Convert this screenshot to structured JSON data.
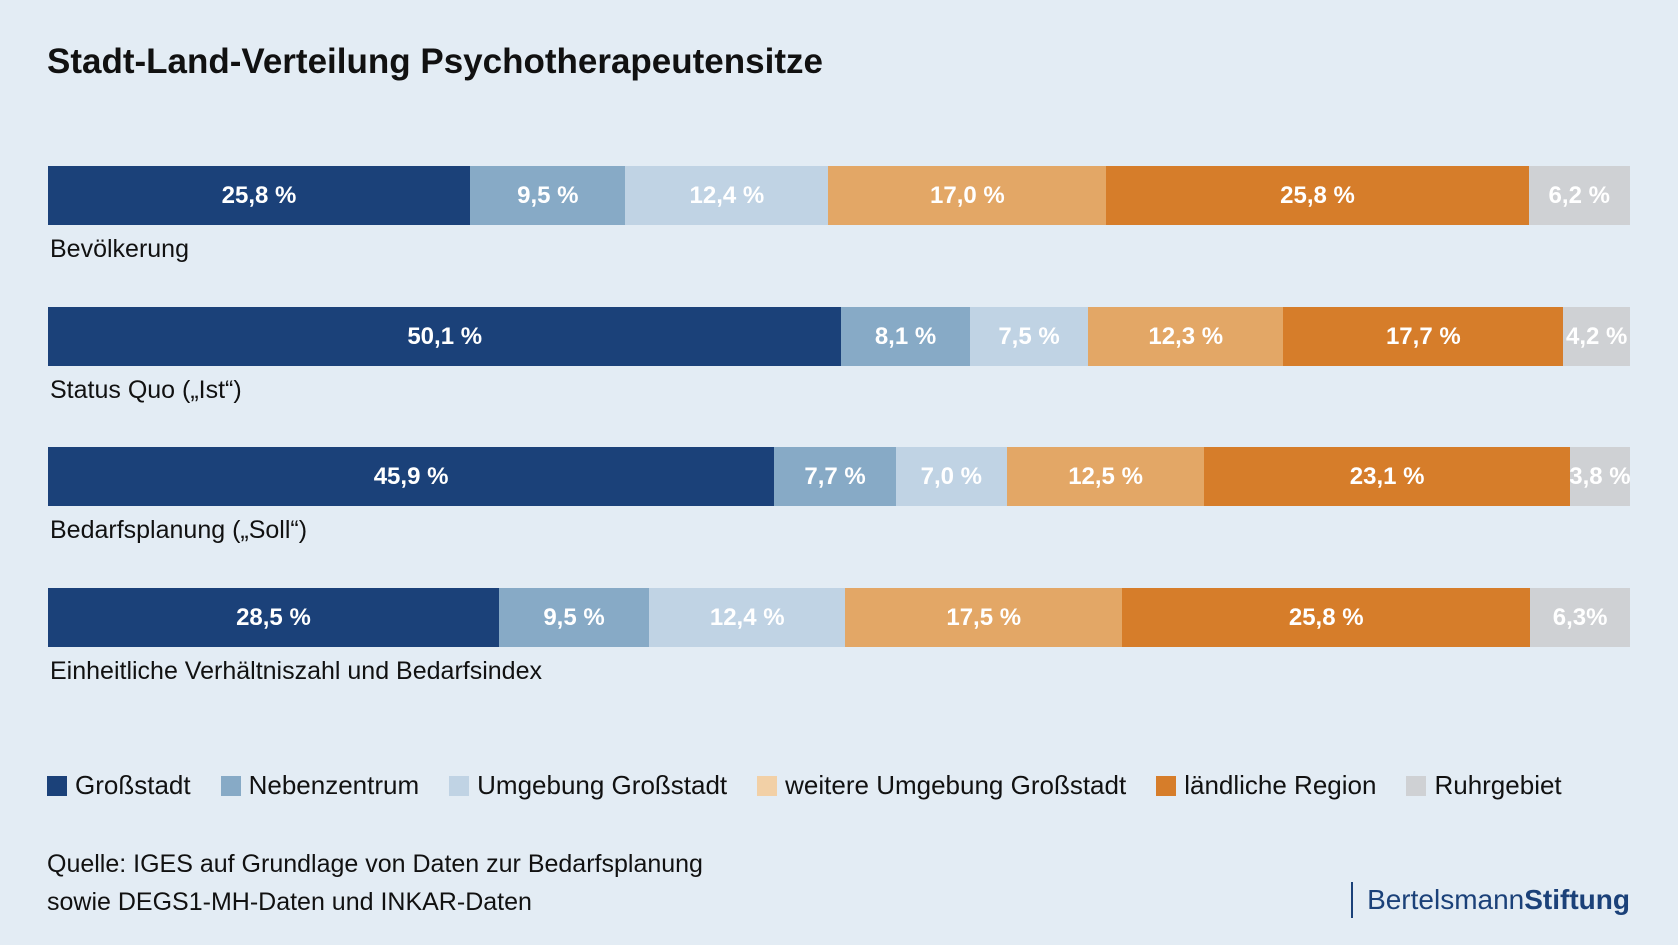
{
  "chart_data": {
    "type": "bar",
    "stacked": true,
    "orientation": "horizontal",
    "title": "Stadt-Land-Verteilung Psychotherapeutensitze",
    "categories": [
      "Bevölkerung",
      "Status Quo („Ist“)",
      "Bedarfsplanung („Soll“)",
      "Einheitliche Verhältniszahl und Bedarfsindex"
    ],
    "series": [
      {
        "name": "Großstadt",
        "color": "#1b4179",
        "values": [
          25.8,
          50.1,
          45.9,
          28.5
        ],
        "labels": [
          "25,8 %",
          "50,1 %",
          "45,9 %",
          "28,5 %"
        ]
      },
      {
        "name": "Nebenzentrum",
        "color": "#87aac6",
        "values": [
          9.5,
          8.1,
          7.7,
          9.5
        ],
        "labels": [
          "9,5 %",
          "8,1 %",
          "7,7 %",
          "9,5 %"
        ]
      },
      {
        "name": "Umgebung Großstadt",
        "color": "#c0d3e4",
        "values": [
          12.4,
          7.5,
          7.0,
          12.4
        ],
        "labels": [
          "12,4 %",
          "7,5 %",
          "7,0 %",
          "12,4 %"
        ]
      },
      {
        "name": "weitere Umgebung Großstadt",
        "color": "#e3a766",
        "legend_color": "#f2d0a6",
        "values": [
          17.0,
          12.3,
          12.5,
          17.5
        ],
        "labels": [
          "17,0 %",
          "12,3 %",
          "12,5 %",
          "17,5 %"
        ]
      },
      {
        "name": "ländliche Region",
        "color": "#d67d2a",
        "values": [
          25.8,
          17.7,
          23.1,
          25.8
        ],
        "labels": [
          "25,8 %",
          "17,7 %",
          "23,1 %",
          "25,8 %"
        ]
      },
      {
        "name": "Ruhrgebiet",
        "color": "#cfd1d4",
        "values": [
          6.2,
          4.2,
          3.8,
          6.3
        ],
        "labels": [
          "6,2 %",
          "4,2 %",
          "3,8 %",
          "6,3%"
        ]
      }
    ],
    "legend": "bottom",
    "grid": false
  },
  "source": [
    "Quelle: IGES auf Grundlage von Daten zur Bedarfsplanung",
    "sowie DEGS1-MH-Daten und INKAR-Daten"
  ],
  "logo": {
    "part1": "Bertelsmann",
    "part2": "Stiftung"
  }
}
